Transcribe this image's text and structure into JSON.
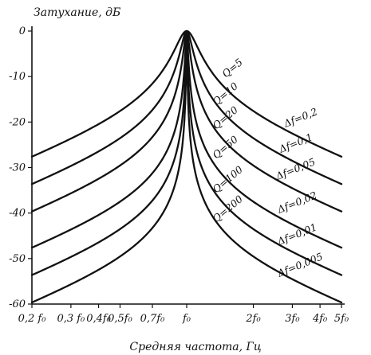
{
  "chart_data": {
    "type": "line",
    "ylabel": "Затухание, дБ",
    "xlabel": "Средняя частота, Гц",
    "ylim": [
      -60,
      0
    ],
    "xlim": [
      0.2,
      5
    ],
    "x_scale": "log",
    "y_ticks": [
      "0",
      "-10",
      "-20",
      "-30",
      "-40",
      "-50",
      "-60"
    ],
    "y_tick_values": [
      0,
      -10,
      -20,
      -30,
      -40,
      -50,
      -60
    ],
    "x_ticks": [
      {
        "value": 0.2,
        "label": "0,2 f₀"
      },
      {
        "value": 0.3,
        "label": "0,3 f₀"
      },
      {
        "value": 0.4,
        "label": "0,4f₀"
      },
      {
        "value": 0.5,
        "label": "0,5f₀"
      },
      {
        "value": 0.7,
        "label": "0,7f₀"
      },
      {
        "value": 1,
        "label": "f₀"
      },
      {
        "value": 2,
        "label": "2f₀"
      },
      {
        "value": 3,
        "label": "3f₀"
      },
      {
        "value": 4,
        "label": "4f₀"
      },
      {
        "value": 5,
        "label": "5f₀"
      }
    ],
    "series": [
      {
        "q_label": "Q=5",
        "df_label": "Δf=0,2",
        "Q": 5
      },
      {
        "q_label": "Q=10",
        "df_label": "Δf=0,1",
        "Q": 10
      },
      {
        "q_label": "Q=20",
        "df_label": "Δf=0,05",
        "Q": 20
      },
      {
        "q_label": "Q=50",
        "df_label": "Δf=0,02",
        "Q": 50
      },
      {
        "q_label": "Q=100",
        "df_label": "Δf=0,01",
        "Q": 100
      },
      {
        "q_label": "Q=200",
        "df_label": "Δf=0,005",
        "Q": 200
      }
    ],
    "grid": false
  }
}
